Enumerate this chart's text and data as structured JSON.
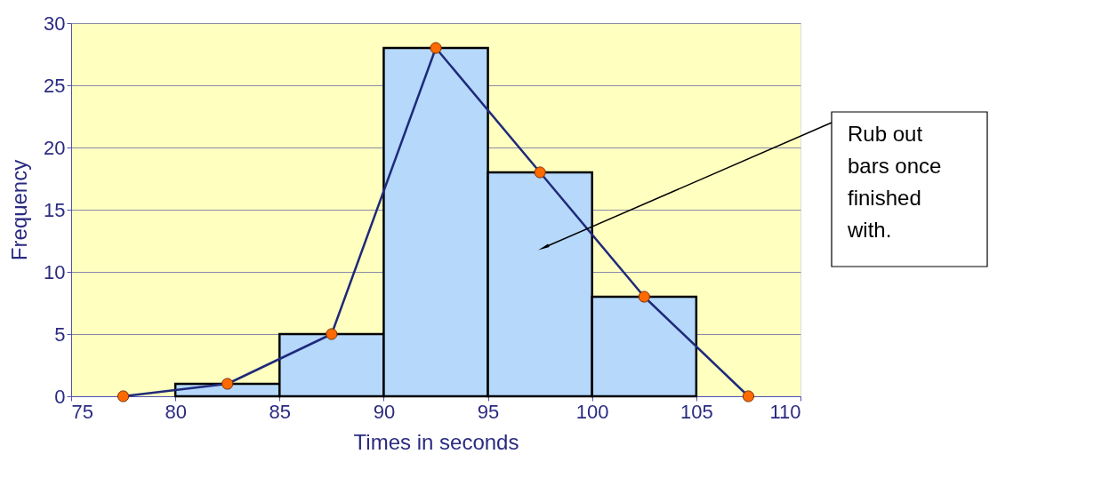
{
  "chart_data": {
    "type": "histogram",
    "xlabel": "Times in seconds",
    "ylabel": "Frequency",
    "bins": [
      80,
      85,
      90,
      95,
      100,
      105
    ],
    "values": [
      1,
      5,
      28,
      18,
      8
    ],
    "color": "#b5d8fb",
    "series": [
      {
        "type": "line",
        "x": [
          77.5,
          82.5,
          87.5,
          92.5,
          97.5,
          102.5,
          107.5
        ],
        "values": [
          0,
          1,
          5,
          28,
          18,
          8,
          0
        ],
        "color": "#1f2a7a"
      }
    ],
    "marker": "circle",
    "xlim": [
      75,
      110
    ],
    "xticks": [
      75,
      80,
      85,
      90,
      95,
      100,
      105,
      110
    ],
    "ylim": [
      0,
      30
    ],
    "yticks": [
      0,
      5,
      10,
      15,
      20,
      25,
      30
    ],
    "grid": "y",
    "annotations": [
      "Rub out bars once finished with."
    ]
  }
}
